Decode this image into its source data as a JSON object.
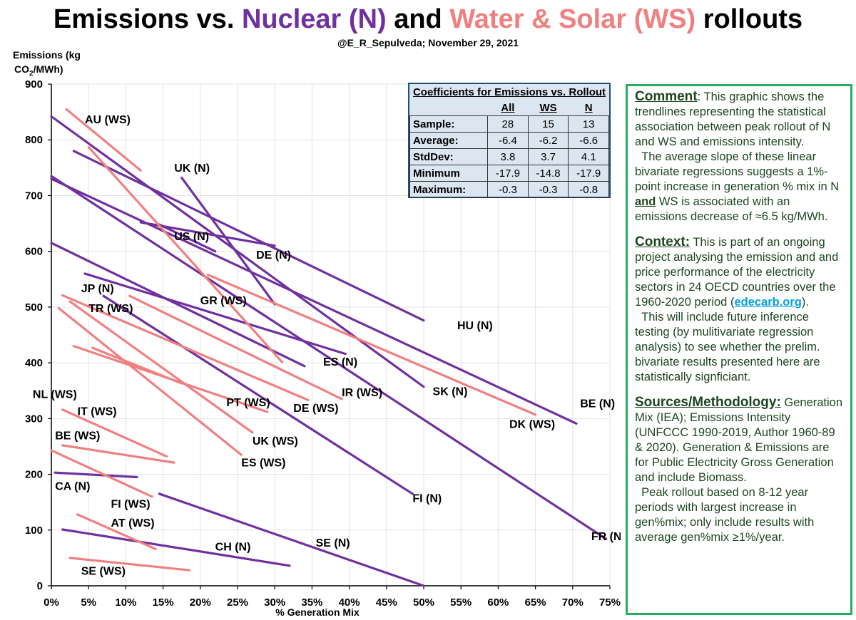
{
  "title": {
    "part1": "Emissions vs. ",
    "part2": "Nuclear (N)",
    "part3": " and ",
    "part4": "Water & Solar (WS)",
    "part5": " rollouts"
  },
  "subtitle": "@E_R_Sepulveda; November 29, 2021",
  "colors": {
    "nuclear": "#7030A0",
    "water_solar": "#F08080",
    "comment_border": "#27AE60",
    "table_bg": "#DCE6F1"
  },
  "chart_data": {
    "type": "line",
    "title": "Emissions vs. Nuclear (N) and Water & Solar (WS) rollouts",
    "ylabel_line1": "Emissions (kg",
    "ylabel_line2": "CO",
    "ylabel_sub": "2",
    "ylabel_line2_end": "/MWh)",
    "xlabel": "% Generation Mix",
    "xlim": [
      0,
      75
    ],
    "ylim": [
      0,
      900
    ],
    "x_ticks": [
      0,
      5,
      10,
      15,
      20,
      25,
      30,
      35,
      40,
      45,
      50,
      55,
      60,
      65,
      70,
      75
    ],
    "x_tick_labels": [
      "0%",
      "5%",
      "10%",
      "15%",
      "20%",
      "25%",
      "30%",
      "35%",
      "40%",
      "45%",
      "50%",
      "55%",
      "60%",
      "65%",
      "70%",
      "75%"
    ],
    "y_ticks": [
      0,
      100,
      200,
      300,
      400,
      500,
      600,
      700,
      800,
      900
    ],
    "y_tick_labels": [
      "0",
      "100",
      "200",
      "300",
      "400",
      "500",
      "600",
      "700",
      "800",
      "900"
    ],
    "grid": true,
    "series": [
      {
        "name": "FR (N)",
        "group": "N",
        "x": [
          0,
          74.5
        ],
        "y": [
          735,
          84
        ],
        "label_at": [
          72.5,
          82
        ]
      },
      {
        "name": "BE (N)",
        "group": "N",
        "x": [
          0,
          70.5
        ],
        "y": [
          730,
          291
        ],
        "label_at": [
          71,
          320
        ]
      },
      {
        "name": "HU (N)",
        "group": "N",
        "x": [
          3,
          50
        ],
        "y": [
          780,
          476
        ],
        "label_at": [
          54.5,
          460
        ]
      },
      {
        "name": "SK (N)",
        "group": "N",
        "x": [
          0,
          50
        ],
        "y": [
          842,
          357
        ],
        "label_at": [
          51.2,
          342
        ]
      },
      {
        "name": "DE (N)",
        "group": "N",
        "x": [
          12,
          30
        ],
        "y": [
          652,
          610
        ],
        "label_at": [
          27.5,
          587
        ]
      },
      {
        "name": "UK (N)",
        "group": "N",
        "x": [
          17.5,
          30
        ],
        "y": [
          732,
          505
        ],
        "label_at": [
          16.5,
          743
        ]
      },
      {
        "name": "US (N)",
        "group": "N",
        "x": [
          14.5,
          22
        ],
        "y": [
          648,
          600
        ],
        "label_at": [
          16.5,
          620
        ]
      },
      {
        "name": "ES (N)",
        "group": "N",
        "x": [
          4.5,
          39.5
        ],
        "y": [
          560,
          416
        ],
        "label_at": [
          36.5,
          395
        ]
      },
      {
        "name": "JP (N)",
        "group": "N",
        "x": [
          0,
          34
        ],
        "y": [
          615,
          394
        ],
        "label_at": [
          4,
          527
        ]
      },
      {
        "name": "FI (N)",
        "group": "N",
        "x": [
          7,
          48.5
        ],
        "y": [
          520,
          165
        ],
        "label_at": [
          48.5,
          150
        ]
      },
      {
        "name": "CA (N)",
        "group": "N",
        "x": [
          0.5,
          11.5
        ],
        "y": [
          203,
          195
        ],
        "label_at": [
          0.5,
          172
        ]
      },
      {
        "name": "SE (N)",
        "group": "N",
        "x": [
          14.5,
          50
        ],
        "y": [
          165,
          0
        ],
        "label_at": [
          35.5,
          70
        ]
      },
      {
        "name": "CH (N)",
        "group": "N",
        "x": [
          1.5,
          32
        ],
        "y": [
          101,
          36
        ],
        "label_at": [
          22,
          63
        ]
      },
      {
        "name": "AU (WS)",
        "group": "WS",
        "x": [
          2,
          12
        ],
        "y": [
          855,
          745
        ],
        "label_at": [
          4.5,
          830
        ]
      },
      {
        "name": "GR (WS)",
        "group": "WS",
        "x": [
          5,
          31
        ],
        "y": [
          787,
          401
        ],
        "label_at": [
          20,
          505
        ]
      },
      {
        "name": "DK (WS)",
        "group": "WS",
        "x": [
          21,
          65
        ],
        "y": [
          558,
          307
        ],
        "label_at": [
          61.5,
          283
        ]
      },
      {
        "name": "IR (WS)",
        "group": "WS",
        "x": [
          10.5,
          39
        ],
        "y": [
          520,
          335
        ],
        "label_at": [
          39,
          340
        ]
      },
      {
        "name": "DE (WS)",
        "group": "WS",
        "x": [
          1.5,
          34.5
        ],
        "y": [
          521,
          333
        ],
        "label_at": [
          32.5,
          312
        ]
      },
      {
        "name": "TR (WS)",
        "group": "WS",
        "x": [
          2.5,
          27
        ],
        "y": [
          510,
          275
        ],
        "label_at": [
          5,
          491
        ]
      },
      {
        "name": "PT (WS)",
        "group": "WS",
        "x": [
          3,
          29
        ],
        "y": [
          430,
          312
        ],
        "label_at": [
          23.5,
          322
        ]
      },
      {
        "name": "UK (WS)",
        "group": "WS",
        "x": [
          5.5,
          17.5
        ],
        "y": [
          427,
          363
        ],
        "label_at": [
          27,
          253
        ]
      },
      {
        "name": "ES (WS)",
        "group": "WS",
        "x": [
          1,
          25.5
        ],
        "y": [
          498,
          235
        ],
        "label_at": [
          25.5,
          214
        ]
      },
      {
        "name": "IT (WS)",
        "group": "WS",
        "x": [
          1.5,
          15.5
        ],
        "y": [
          316,
          232
        ],
        "label_at": [
          3.5,
          306
        ]
      },
      {
        "name": "BE (WS)",
        "group": "WS",
        "x": [
          1.5,
          16.5
        ],
        "y": [
          252,
          221
        ],
        "label_at": [
          0.5,
          263
        ]
      },
      {
        "name": "FI (WS)",
        "group": "WS",
        "x": [
          0,
          13.5
        ],
        "y": [
          243,
          160
        ],
        "label_at": [
          8,
          140
        ]
      },
      {
        "name": "AT (WS)",
        "group": "WS",
        "x": [
          3.5,
          14
        ],
        "y": [
          128,
          66
        ],
        "label_at": [
          8,
          106
        ]
      },
      {
        "name": "SE (WS)",
        "group": "WS",
        "x": [
          2.5,
          18.5
        ],
        "y": [
          50,
          28
        ],
        "label_at": [
          4,
          20
        ]
      },
      {
        "name": "NL (WS)",
        "group": "WS",
        "x": [],
        "y": [],
        "label_at": [
          -2.5,
          337
        ]
      }
    ]
  },
  "coefficients": {
    "caption": "Coefficients for Emissions vs. Rollout",
    "headers": [
      "",
      "All",
      "WS",
      "N"
    ],
    "rows": [
      {
        "label": "Sample:",
        "all": "28",
        "ws": "15",
        "n": "13"
      },
      {
        "label": "Average:",
        "all": "-6.4",
        "ws": "-6.2",
        "n": "-6.6"
      },
      {
        "label": "StdDev:",
        "all": "3.8",
        "ws": "3.7",
        "n": "4.1"
      },
      {
        "label": "Minimum",
        "all": "-17.9",
        "ws": "-14.8",
        "n": "-17.9"
      },
      {
        "label": "Maximum:",
        "all": "-0.3",
        "ws": "-0.3",
        "n": "-0.8"
      }
    ]
  },
  "comment": {
    "comment_head": "Comment",
    "comment_text1": ": This graphic shows the trendlines representing the statistical association between peak rollout of N and WS and emissions intensity.",
    "comment_text2": "The average slope of these linear bivariate regressions suggests a 1%-point increase in generation % mix in N ",
    "comment_and": "and",
    "comment_text3": " WS is associated with an emissions decrease of ≈6.5 kg/MWh.",
    "context_head": "Context:",
    "context_text1": " This is part of an ongoing project analysing the emission and and price performance of the electricity sectors in 24 OECD countries over the 1960-2020 period (",
    "context_link": "edecarb.org",
    "context_text2": ").",
    "context_text3": "This will include future inference testing (by mulitivariate regression analysis) to see whether the prelim. bivariate results presented here are statistically signficiant.",
    "sources_head": "Sources/Methodology:",
    "sources_text1": " Generation Mix (IEA); Emissions Intensity (UNFCCC  1990-2019, Author 1960-89 & 2020). Generation & Emissions are for Public Electricity Gross Generation and include Biomass.",
    "sources_text2": "Peak rollout based on 8-12 year periods with largest increase in gen%mix; only include results with average gen%mix ≥1%/year."
  }
}
